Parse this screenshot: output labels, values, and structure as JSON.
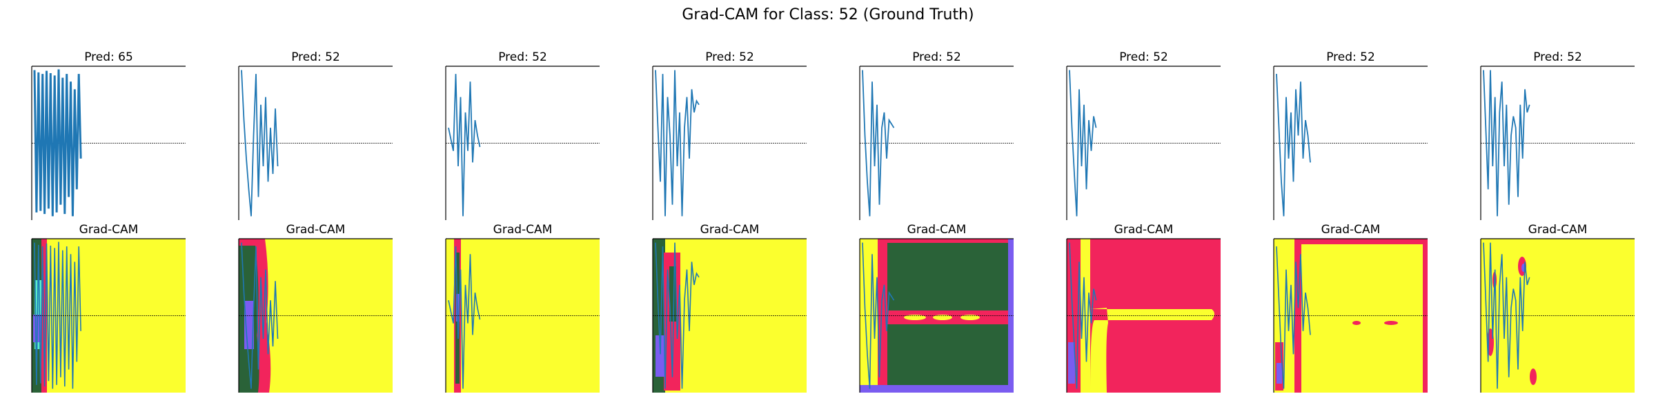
{
  "figure": {
    "title": "Grad-CAM for Class: 52 (Ground Truth)"
  },
  "colors": {
    "signal": "#1f77b4",
    "cam_yellow": "#fbff2e",
    "cam_red": "#f2245c",
    "cam_green": "#2a6238",
    "cam_purple": "#7a5cf0",
    "cam_cyan": "#5cf0c8",
    "guide_line": "#000000"
  },
  "chart_data": [
    {
      "type": "line",
      "title": "Pred: 65",
      "series": [
        {
          "values": [
            0.95,
            -0.9,
            0.92,
            -0.88,
            0.9,
            -0.92,
            0.94,
            -0.85,
            0.91,
            -0.95,
            0.88,
            -0.9,
            0.96,
            -0.8,
            0.85,
            -0.92,
            0.9,
            -0.7,
            0.8,
            -0.95,
            0.7,
            -0.6,
            0.9,
            -0.2
          ]
        }
      ],
      "x_extent": 240,
      "ylim": [
        -1,
        1
      ]
    },
    {
      "type": "line",
      "title": "Pred: 52",
      "series": [
        {
          "values": [
            0.95,
            0.3,
            -0.2,
            -0.6,
            -0.95,
            0.1,
            0.9,
            -0.7,
            0.5,
            -0.3,
            0.6,
            -0.5,
            0.2,
            -0.4,
            0.45,
            -0.3
          ]
        }
      ],
      "x_extent": 240,
      "ylim": [
        -1,
        1
      ]
    },
    {
      "type": "line",
      "title": "Pred: 52",
      "series": [
        {
          "values": [
            0.2,
            0.05,
            -0.1,
            0.9,
            -0.3,
            0.6,
            -0.95,
            0.4,
            -0.1,
            0.8,
            -0.25,
            0.3,
            0.1,
            -0.05
          ]
        }
      ],
      "x_extent": 240,
      "ylim": [
        -1,
        1
      ]
    },
    {
      "type": "line",
      "title": "Pred: 52",
      "series": [
        {
          "values": [
            0.95,
            0.2,
            -0.5,
            0.9,
            -0.95,
            0.6,
            0.1,
            -0.8,
            0.95,
            -0.3,
            0.4,
            -0.95,
            0.2,
            0.6,
            -0.2,
            0.7,
            0.4,
            0.55,
            0.5
          ]
        }
      ],
      "x_extent": 240,
      "ylim": [
        -1,
        1
      ]
    },
    {
      "type": "line",
      "title": "Pred: 52",
      "series": [
        {
          "values": [
            0.95,
            0.1,
            -0.5,
            -0.95,
            0.8,
            -0.3,
            0.5,
            -0.8,
            0.2,
            0.4,
            -0.2,
            0.3,
            0.25,
            0.2
          ]
        }
      ],
      "x_extent": 240,
      "ylim": [
        -1,
        1
      ]
    },
    {
      "type": "line",
      "title": "Pred: 52",
      "series": [
        {
          "values": [
            0.95,
            0.2,
            -0.4,
            -0.95,
            0.7,
            -0.3,
            0.5,
            -0.6,
            0.3,
            -0.1,
            0.35,
            0.2
          ]
        }
      ],
      "x_extent": 240,
      "ylim": [
        -1,
        1
      ]
    },
    {
      "type": "line",
      "title": "Pred: 52",
      "series": [
        {
          "values": [
            0.9,
            0.2,
            -0.5,
            -0.95,
            0.6,
            -0.2,
            0.4,
            -0.5,
            0.7,
            0.1,
            0.8,
            -0.2,
            0.3,
            0.1,
            -0.25
          ]
        }
      ],
      "x_extent": 240,
      "ylim": [
        -1,
        1
      ]
    },
    {
      "type": "line",
      "title": "Pred: 52",
      "series": [
        {
          "values": [
            0.95,
            0.2,
            -0.6,
            0.95,
            -0.3,
            0.6,
            -0.95,
            0.4,
            0.8,
            -0.3,
            0.5,
            -0.8,
            0.1,
            0.35,
            0.2,
            -0.7,
            0.5,
            -0.2,
            0.7,
            0.4,
            0.5
          ]
        }
      ],
      "x_extent": 240,
      "ylim": [
        -1,
        1
      ]
    }
  ],
  "heatmaps": [
    {
      "title": "Grad-CAM"
    },
    {
      "title": "Grad-CAM"
    },
    {
      "title": "Grad-CAM"
    },
    {
      "title": "Grad-CAM"
    },
    {
      "title": "Grad-CAM"
    },
    {
      "title": "Grad-CAM"
    },
    {
      "title": "Grad-CAM"
    },
    {
      "title": "Grad-CAM"
    }
  ]
}
